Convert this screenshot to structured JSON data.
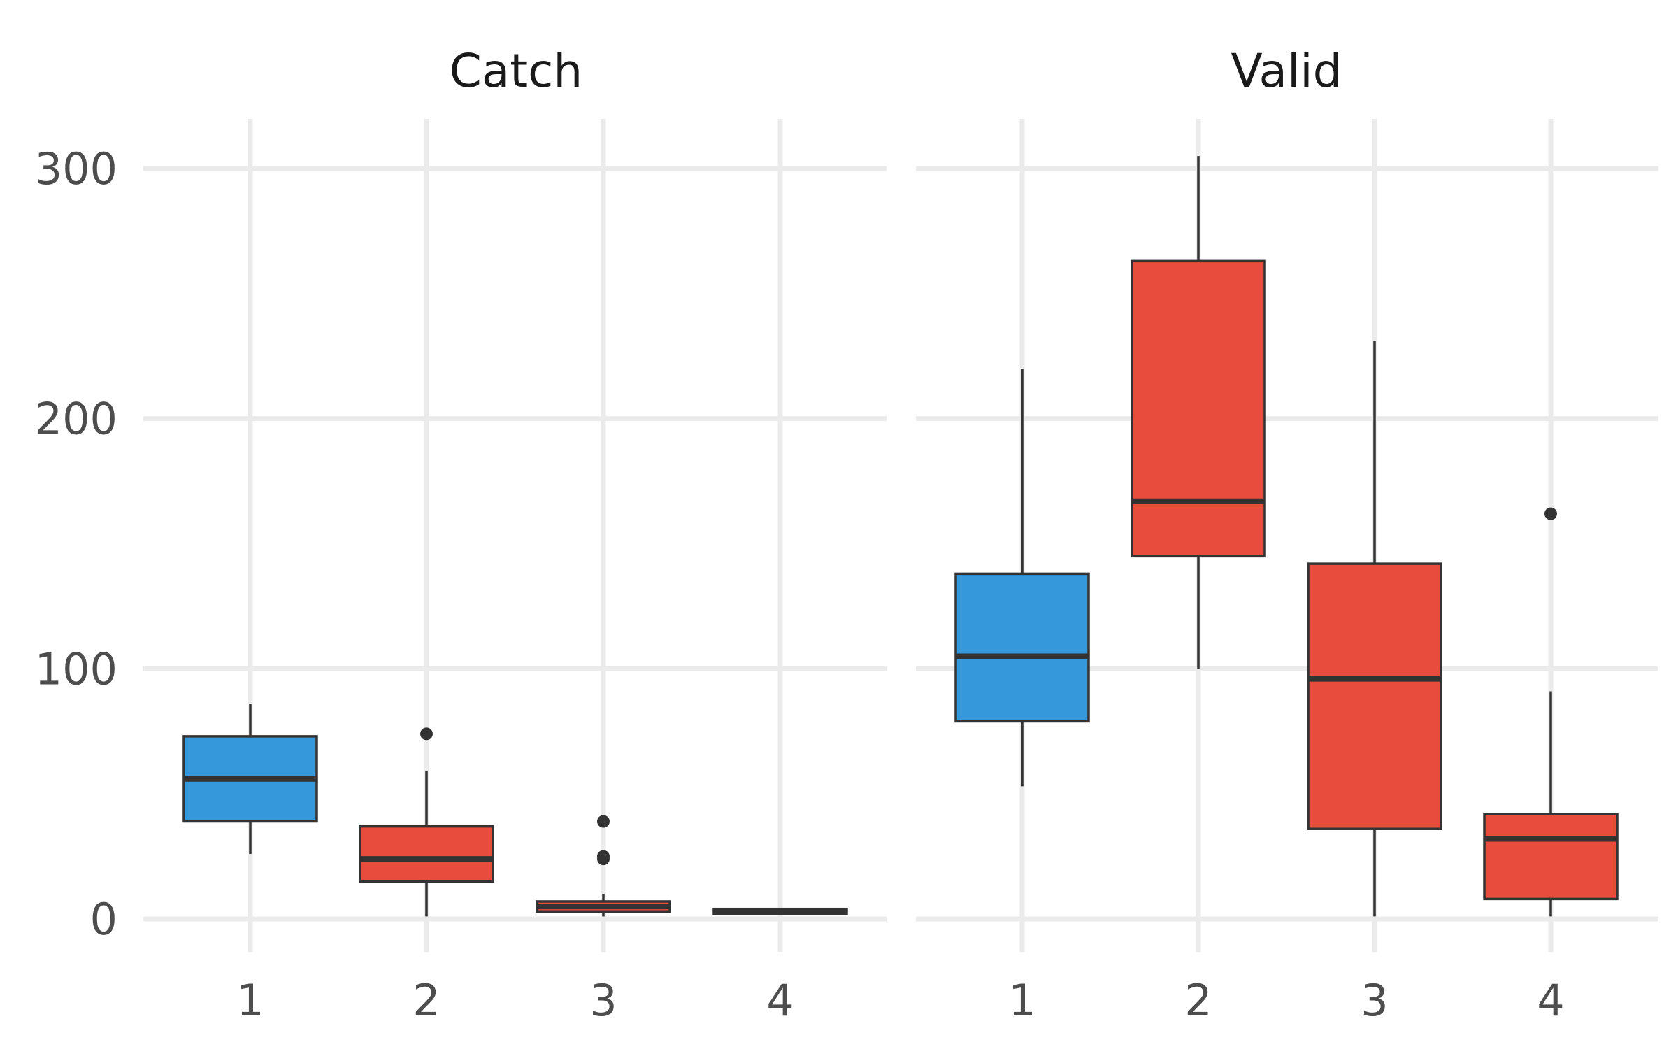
{
  "colors": {
    "blue": "#3598db",
    "red": "#e74c3c",
    "outline": "#333333",
    "grid": "#ebebeb"
  },
  "chart_data": {
    "type": "boxplot",
    "ylim": [
      -15,
      320
    ],
    "y_ticks": [
      0,
      100,
      200,
      300
    ],
    "grid": true,
    "legend": "none",
    "panels": [
      {
        "title": "Catch",
        "categories": [
          "1",
          "2",
          "3",
          "4"
        ],
        "boxes": [
          {
            "category": "1",
            "color": "blue",
            "whisker_low": 26,
            "q1": 39,
            "median": 56,
            "q3": 73,
            "whisker_high": 86,
            "outliers": []
          },
          {
            "category": "2",
            "color": "red",
            "whisker_low": 1,
            "q1": 15,
            "median": 24,
            "q3": 37,
            "whisker_high": 59,
            "outliers": [
              74
            ]
          },
          {
            "category": "3",
            "color": "red",
            "whisker_low": 1,
            "q1": 3,
            "median": 5,
            "q3": 7,
            "whisker_high": 10,
            "outliers": [
              24,
              25,
              39
            ]
          },
          {
            "category": "4",
            "color": "red",
            "whisker_low": 2,
            "q1": 2,
            "median": 3,
            "q3": 4,
            "whisker_high": 4,
            "outliers": []
          }
        ]
      },
      {
        "title": "Valid",
        "categories": [
          "1",
          "2",
          "3",
          "4"
        ],
        "boxes": [
          {
            "category": "1",
            "color": "blue",
            "whisker_low": 53,
            "q1": 79,
            "median": 105,
            "q3": 138,
            "whisker_high": 220,
            "outliers": []
          },
          {
            "category": "2",
            "color": "red",
            "whisker_low": 100,
            "q1": 145,
            "median": 167,
            "q3": 263,
            "whisker_high": 305,
            "outliers": []
          },
          {
            "category": "3",
            "color": "red",
            "whisker_low": 1,
            "q1": 36,
            "median": 96,
            "q3": 142,
            "whisker_high": 231,
            "outliers": []
          },
          {
            "category": "4",
            "color": "red",
            "whisker_low": 1,
            "q1": 8,
            "median": 32,
            "q3": 42,
            "whisker_high": 91,
            "outliers": [
              162
            ]
          }
        ]
      }
    ]
  }
}
